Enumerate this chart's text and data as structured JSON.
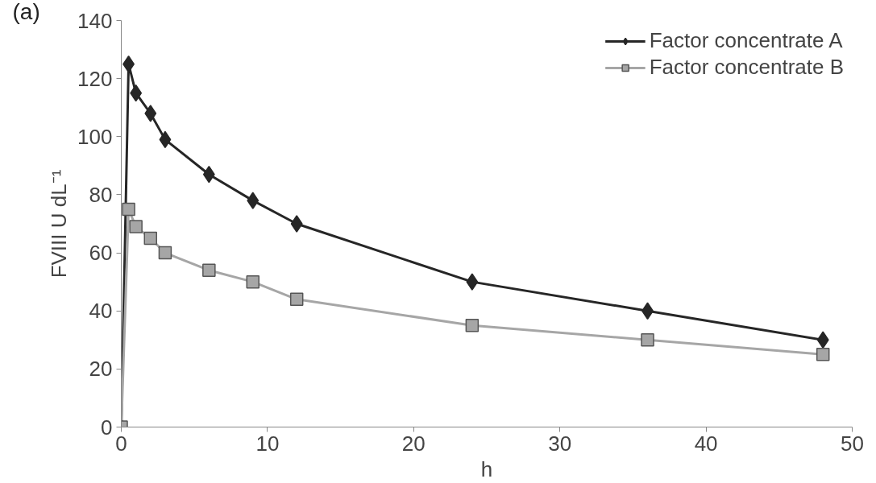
{
  "chart_data": {
    "type": "line",
    "xlabel": "h",
    "ylabel": "FVIII U dL⁻¹",
    "annotations": [
      "(a)"
    ],
    "x": [
      0,
      0.5,
      1,
      2,
      3,
      6,
      9,
      12,
      24,
      36,
      48
    ],
    "series": [
      {
        "name": "Factor concentrate A",
        "color": "#262626",
        "marker": "diamond",
        "values": [
          0,
          125,
          115,
          108,
          99,
          87,
          78,
          70,
          50,
          40,
          30
        ]
      },
      {
        "name": "Factor concentrate B",
        "color": "#a6a6a6",
        "marker": "square",
        "values": [
          0,
          75,
          69,
          65,
          60,
          54,
          50,
          44,
          35,
          30,
          25
        ]
      }
    ],
    "xlim": [
      0,
      50
    ],
    "xticks": [
      0,
      10,
      20,
      30,
      40,
      50
    ],
    "ylim": [
      0,
      140
    ],
    "yticks": [
      0,
      20,
      40,
      60,
      80,
      100,
      120,
      140
    ],
    "grid": false,
    "legend": "top right",
    "line_style": "solid"
  }
}
